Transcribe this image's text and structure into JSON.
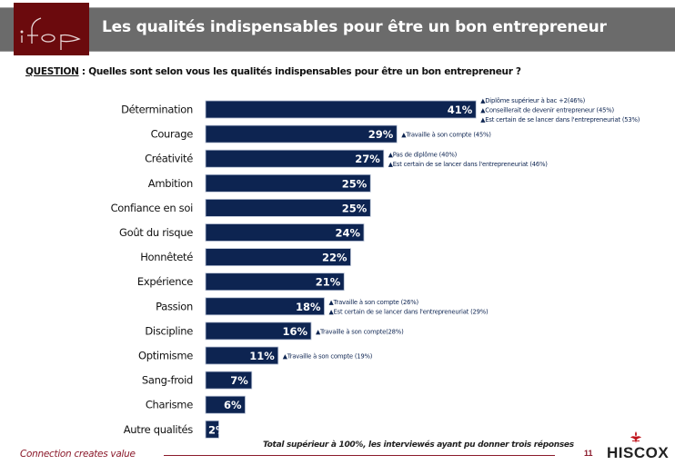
{
  "header": {
    "logo_text": "ifop",
    "title": "Les qualités indispensables pour être un bon entrepreneur"
  },
  "question": {
    "label": "QUESTION",
    "separator": " :  ",
    "text": "Quelles sont selon vous les qualités indispensables pour être un bon entrepreneur ?"
  },
  "colors": {
    "bar": "#0d2451",
    "header_band": "#6b6b6b",
    "logo_bg": "#6b0a0d",
    "accent": "#8b1a2b",
    "annotation_text": "#0d2451"
  },
  "chart_data": {
    "type": "bar",
    "orientation": "horizontal",
    "title": "Les qualités indispensables pour être un bon entrepreneur",
    "xlabel": "",
    "ylabel": "",
    "unit": "%",
    "xlim": [
      0,
      41
    ],
    "grid": false,
    "categories": [
      "Détermination",
      "Courage",
      "Créativité",
      "Ambition",
      "Confiance en soi",
      "Goût du risque",
      "Honnêteté",
      "Expérience",
      "Passion",
      "Discipline",
      "Optimisme",
      "Sang-froid",
      "Charisme",
      "Autre qualités"
    ],
    "values": [
      41,
      29,
      27,
      25,
      25,
      24,
      22,
      21,
      18,
      16,
      11,
      7,
      6,
      2
    ],
    "data_labels": [
      "41%",
      "29%",
      "27%",
      "25%",
      "25%",
      "24%",
      "22%",
      "21%",
      "18%",
      "16%",
      "11%",
      "7%",
      "6%",
      "2%"
    ],
    "annotations": [
      [
        "Diplôme supérieur à bac +2(46%)",
        "Conseillerait de devenir entrepreneur (45%)",
        "Est certain de se lancer dans l'entrepreneuriat (53%)"
      ],
      [
        "Travaille à son compte (45%)"
      ],
      [
        "Pas de diplôme (40%)",
        "Est certain de se lancer dans l'entrepreneuriat (46%)"
      ],
      [],
      [],
      [],
      [],
      [],
      [
        "Travaille à son compte (26%)",
        "Est certain de se lancer dans l'entrepreneuriat (29%)"
      ],
      [
        "Travaille à son compte(28%)"
      ],
      [
        "Travaille à son compte (19%)"
      ],
      [],
      [],
      []
    ],
    "annotation_marker": "▲"
  },
  "footer": {
    "tagline": "Connection creates value",
    "note": "Total supérieur à 100%, les interviewés ayant pu donner trois réponses",
    "page_number": "11",
    "brand": "HISCOX"
  }
}
